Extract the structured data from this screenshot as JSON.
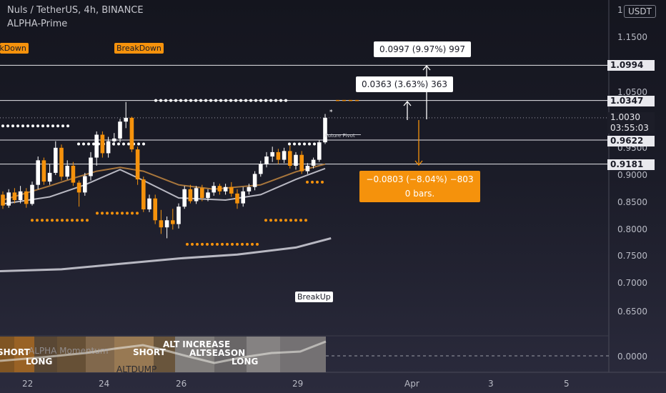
{
  "header": {
    "title": "Nuls / TetherUS, 4h, BINANCE",
    "indicator": "ALPHA-Prime",
    "unit": "USDT"
  },
  "y_axis": {
    "ticks": [
      "1.1500",
      "1.0500",
      "0.9500",
      "0.9000",
      "0.8500",
      "0.8000",
      "0.7500",
      "0.7000",
      "0.6500"
    ],
    "tags": [
      "1.0994",
      "1.0347",
      "0.9622",
      "0.9181"
    ],
    "price_tag": "1.0030",
    "countdown": "03:55:03",
    "top_partial": "1",
    "sub_tick": "0.0000"
  },
  "x_axis": {
    "ticks": [
      "22",
      "24",
      "26",
      "29",
      "Apr",
      "3",
      "5"
    ]
  },
  "labels": {
    "breakdown_left": "BreakDown",
    "breakdown": "BreakDown",
    "breakup": "BreakUp",
    "future_pivot": "Future Pivot",
    "measure_up_large": "0.0997 (9.97%) 997",
    "measure_up_small": "0.0363 (3.63%) 363",
    "measure_down_line1": "−0.0803 (−8.04%) −803",
    "measure_down_line2": "0 bars."
  },
  "subpane": {
    "title": "ALPHA Momentum",
    "short_left": "SHORT",
    "long_left": "LONG",
    "short_mid": "SHORT",
    "alt_increase": "ALT INCREASE",
    "altseason": "ALTSEASON",
    "altdump": "ALTDUMP",
    "long_mid": "LONG"
  },
  "colors": {
    "bull": "#ffffff",
    "bear": "#f5920c",
    "ema_fast": "#a8763c",
    "ema_slow": "#b8b8c2",
    "grid_line": "#e6e6ea",
    "measure_orange": "#f5920c"
  },
  "chart_data": {
    "type": "candlestick",
    "title": "Nuls / TetherUS, 4h, BINANCE",
    "ylim": [
      0.59,
      1.18
    ],
    "x_ticks": [
      "22",
      "24",
      "26",
      "29",
      "Apr",
      "3",
      "5"
    ],
    "candles": [
      {
        "o": 0.862,
        "h": 0.868,
        "l": 0.836,
        "c": 0.842
      },
      {
        "o": 0.842,
        "h": 0.872,
        "l": 0.838,
        "c": 0.866
      },
      {
        "o": 0.866,
        "h": 0.874,
        "l": 0.846,
        "c": 0.852
      },
      {
        "o": 0.852,
        "h": 0.878,
        "l": 0.846,
        "c": 0.868
      },
      {
        "o": 0.868,
        "h": 0.874,
        "l": 0.838,
        "c": 0.845
      },
      {
        "o": 0.845,
        "h": 0.886,
        "l": 0.842,
        "c": 0.88
      },
      {
        "o": 0.88,
        "h": 0.932,
        "l": 0.872,
        "c": 0.925
      },
      {
        "o": 0.925,
        "h": 0.93,
        "l": 0.88,
        "c": 0.886
      },
      {
        "o": 0.886,
        "h": 0.918,
        "l": 0.88,
        "c": 0.902
      },
      {
        "o": 0.902,
        "h": 0.96,
        "l": 0.898,
        "c": 0.948
      },
      {
        "o": 0.948,
        "h": 0.954,
        "l": 0.888,
        "c": 0.895
      },
      {
        "o": 0.895,
        "h": 0.925,
        "l": 0.89,
        "c": 0.915
      },
      {
        "o": 0.915,
        "h": 0.922,
        "l": 0.878,
        "c": 0.884
      },
      {
        "o": 0.884,
        "h": 0.888,
        "l": 0.84,
        "c": 0.866
      },
      {
        "o": 0.866,
        "h": 0.902,
        "l": 0.86,
        "c": 0.896
      },
      {
        "o": 0.896,
        "h": 0.94,
        "l": 0.888,
        "c": 0.93
      },
      {
        "o": 0.93,
        "h": 0.978,
        "l": 0.915,
        "c": 0.972
      },
      {
        "o": 0.972,
        "h": 0.978,
        "l": 0.93,
        "c": 0.938
      },
      {
        "o": 0.938,
        "h": 0.968,
        "l": 0.93,
        "c": 0.96
      },
      {
        "o": 0.96,
        "h": 0.975,
        "l": 0.952,
        "c": 0.965
      },
      {
        "o": 0.965,
        "h": 1.001,
        "l": 0.958,
        "c": 0.996
      },
      {
        "o": 0.996,
        "h": 1.032,
        "l": 0.984,
        "c": 1.003
      },
      {
        "o": 1.003,
        "h": 1.005,
        "l": 0.94,
        "c": 0.945
      },
      {
        "o": 0.945,
        "h": 0.95,
        "l": 0.88,
        "c": 0.89
      },
      {
        "o": 0.89,
        "h": 0.895,
        "l": 0.83,
        "c": 0.835
      },
      {
        "o": 0.835,
        "h": 0.862,
        "l": 0.83,
        "c": 0.855
      },
      {
        "o": 0.855,
        "h": 0.862,
        "l": 0.808,
        "c": 0.815
      },
      {
        "o": 0.815,
        "h": 0.834,
        "l": 0.79,
        "c": 0.802
      },
      {
        "o": 0.802,
        "h": 0.822,
        "l": 0.782,
        "c": 0.815
      },
      {
        "o": 0.815,
        "h": 0.836,
        "l": 0.798,
        "c": 0.808
      },
      {
        "o": 0.808,
        "h": 0.846,
        "l": 0.8,
        "c": 0.84
      },
      {
        "o": 0.84,
        "h": 0.878,
        "l": 0.836,
        "c": 0.872
      },
      {
        "o": 0.872,
        "h": 0.88,
        "l": 0.846,
        "c": 0.85
      },
      {
        "o": 0.85,
        "h": 0.878,
        "l": 0.845,
        "c": 0.874
      },
      {
        "o": 0.874,
        "h": 0.88,
        "l": 0.85,
        "c": 0.856
      },
      {
        "o": 0.856,
        "h": 0.872,
        "l": 0.85,
        "c": 0.866
      },
      {
        "o": 0.866,
        "h": 0.885,
        "l": 0.86,
        "c": 0.878
      },
      {
        "o": 0.878,
        "h": 0.882,
        "l": 0.862,
        "c": 0.868
      },
      {
        "o": 0.868,
        "h": 0.882,
        "l": 0.862,
        "c": 0.876
      },
      {
        "o": 0.876,
        "h": 0.885,
        "l": 0.858,
        "c": 0.864
      },
      {
        "o": 0.864,
        "h": 0.872,
        "l": 0.836,
        "c": 0.846
      },
      {
        "o": 0.846,
        "h": 0.876,
        "l": 0.84,
        "c": 0.868
      },
      {
        "o": 0.868,
        "h": 0.882,
        "l": 0.862,
        "c": 0.876
      },
      {
        "o": 0.876,
        "h": 0.905,
        "l": 0.87,
        "c": 0.9
      },
      {
        "o": 0.9,
        "h": 0.924,
        "l": 0.895,
        "c": 0.918
      },
      {
        "o": 0.918,
        "h": 0.94,
        "l": 0.912,
        "c": 0.932
      },
      {
        "o": 0.932,
        "h": 0.95,
        "l": 0.922,
        "c": 0.94
      },
      {
        "o": 0.94,
        "h": 0.946,
        "l": 0.918,
        "c": 0.926
      },
      {
        "o": 0.926,
        "h": 0.948,
        "l": 0.92,
        "c": 0.942
      },
      {
        "o": 0.942,
        "h": 0.952,
        "l": 0.91,
        "c": 0.915
      },
      {
        "o": 0.915,
        "h": 0.94,
        "l": 0.908,
        "c": 0.935
      },
      {
        "o": 0.935,
        "h": 0.942,
        "l": 0.9,
        "c": 0.905
      },
      {
        "o": 0.905,
        "h": 0.92,
        "l": 0.9,
        "c": 0.915
      },
      {
        "o": 0.915,
        "h": 0.93,
        "l": 0.91,
        "c": 0.926
      },
      {
        "o": 0.926,
        "h": 0.962,
        "l": 0.922,
        "c": 0.958
      },
      {
        "o": 0.958,
        "h": 1.01,
        "l": 0.955,
        "c": 1.003
      }
    ],
    "ema_fast": [
      {
        "i": 0,
        "v": 0.852
      },
      {
        "i": 8,
        "v": 0.878
      },
      {
        "i": 12,
        "v": 0.892
      },
      {
        "i": 16,
        "v": 0.905
      },
      {
        "i": 20,
        "v": 0.912
      },
      {
        "i": 24,
        "v": 0.905
      },
      {
        "i": 30,
        "v": 0.88
      },
      {
        "i": 36,
        "v": 0.872
      },
      {
        "i": 44,
        "v": 0.88
      },
      {
        "i": 50,
        "v": 0.904
      },
      {
        "i": 55,
        "v": 0.918
      }
    ],
    "ema_slow": [
      {
        "i": 0,
        "v": 0.845
      },
      {
        "i": 8,
        "v": 0.858
      },
      {
        "i": 14,
        "v": 0.88
      },
      {
        "i": 20,
        "v": 0.908
      },
      {
        "i": 24,
        "v": 0.888
      },
      {
        "i": 30,
        "v": 0.856
      },
      {
        "i": 38,
        "v": 0.852
      },
      {
        "i": 44,
        "v": 0.862
      },
      {
        "i": 50,
        "v": 0.89
      },
      {
        "i": 55,
        "v": 0.91
      }
    ],
    "ma_long": [
      {
        "i": -5,
        "v": 0.72
      },
      {
        "i": 10,
        "v": 0.725
      },
      {
        "i": 20,
        "v": 0.735
      },
      {
        "i": 30,
        "v": 0.745
      },
      {
        "i": 40,
        "v": 0.752
      },
      {
        "i": 50,
        "v": 0.765
      },
      {
        "i": 56,
        "v": 0.782
      }
    ],
    "levels": [
      1.0994,
      1.0347,
      0.9622,
      0.9181
    ],
    "price": 1.003
  }
}
